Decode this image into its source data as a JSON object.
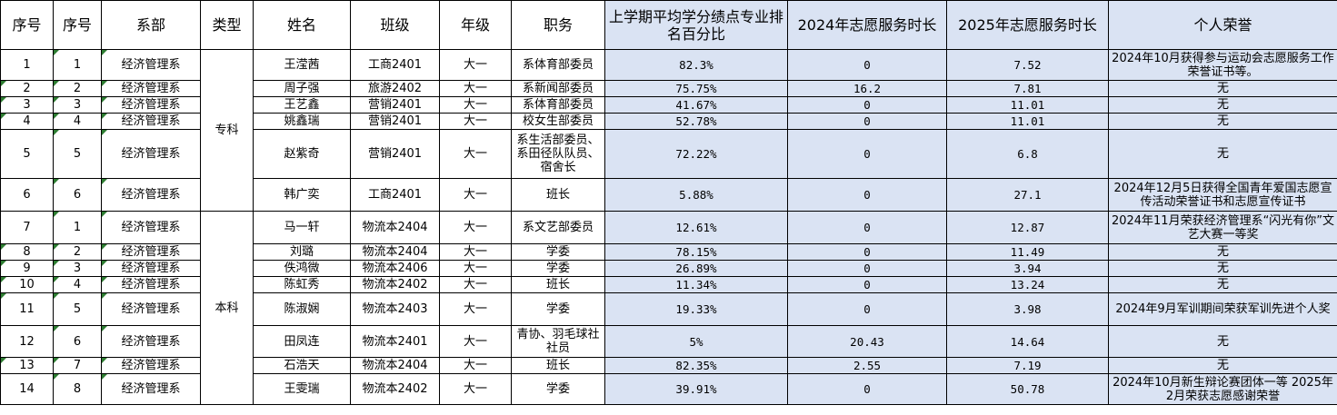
{
  "columns": [
    "序号",
    "序号",
    "系部",
    "类型",
    "姓名",
    "班级",
    "年级",
    "职务",
    "上学期平均学分绩点专业排名百分比",
    "2024年志愿服务时长",
    "2025年志愿服务时长",
    "个人荣誉"
  ],
  "groups": {
    "zhuanke": "专科",
    "benke": "本科"
  },
  "rows": [
    {
      "idx": "1",
      "sub": "1",
      "dept": "经济管理系",
      "name": "王滢茜",
      "cls": "工商2401",
      "grade": "大一",
      "role": "系体育部委员",
      "rank": "82.3%",
      "h2024": "0",
      "h2025": "7.52",
      "honor": "2024年10月获得参与运动会志愿服务工作荣誉证书等。"
    },
    {
      "idx": "2",
      "sub": "2",
      "dept": "经济管理系",
      "name": "周子强",
      "cls": "旅游2402",
      "grade": "大一",
      "role": "系新闻部委员",
      "rank": "75.75%",
      "h2024": "16.2",
      "h2025": "7.81",
      "honor": "无"
    },
    {
      "idx": "3",
      "sub": "3",
      "dept": "经济管理系",
      "name": "王艺鑫",
      "cls": "营销2401",
      "grade": "大一",
      "role": "系体育部委员",
      "rank": "41.67%",
      "h2024": "0",
      "h2025": "11.01",
      "honor": "无"
    },
    {
      "idx": "4",
      "sub": "4",
      "dept": "经济管理系",
      "name": "姚鑫瑞",
      "cls": "营销2401",
      "grade": "大一",
      "role": "校女生部委员",
      "rank": "52.78%",
      "h2024": "0",
      "h2025": "11.01",
      "honor": "无"
    },
    {
      "idx": "5",
      "sub": "5",
      "dept": "经济管理系",
      "name": "赵紫奇",
      "cls": "营销2401",
      "grade": "大一",
      "role": "系生活部委员、系田径队队员、宿舍长",
      "rank": "72.22%",
      "h2024": "0",
      "h2025": "6.8",
      "honor": "无"
    },
    {
      "idx": "6",
      "sub": "6",
      "dept": "经济管理系",
      "name": "韩广奕",
      "cls": "工商2401",
      "grade": "大一",
      "role": "班长",
      "rank": "5.88%",
      "h2024": "0",
      "h2025": "27.1",
      "honor": "2024年12月5日获得全国青年爱国志愿宣传活动荣誉证书和志愿宣传证书"
    },
    {
      "idx": "7",
      "sub": "1",
      "dept": "经济管理系",
      "name": "马一轩",
      "cls": "物流本2404",
      "grade": "大一",
      "role": "系文艺部委员",
      "rank": "12.61%",
      "h2024": "0",
      "h2025": "12.87",
      "honor": "2024年11月荣获经济管理系“闪光有你”文艺大赛一等奖"
    },
    {
      "idx": "8",
      "sub": "2",
      "dept": "经济管理系",
      "name": "刘璐",
      "cls": "物流本2404",
      "grade": "大一",
      "role": "学委",
      "rank": "78.15%",
      "h2024": "0",
      "h2025": "11.49",
      "honor": "无"
    },
    {
      "idx": "9",
      "sub": "3",
      "dept": "经济管理系",
      "name": "佚鸿微",
      "cls": "物流本2406",
      "grade": "大一",
      "role": "学委",
      "rank": "26.89%",
      "h2024": "0",
      "h2025": "3.94",
      "honor": "无"
    },
    {
      "idx": "10",
      "sub": "4",
      "dept": "经济管理系",
      "name": "陈虹秀",
      "cls": "物流本2402",
      "grade": "大一",
      "role": "班长",
      "rank": "11.34%",
      "h2024": "0",
      "h2025": "13.24",
      "honor": "无"
    },
    {
      "idx": "11",
      "sub": "5",
      "dept": "经济管理系",
      "name": "陈淑娴",
      "cls": "物流本2403",
      "grade": "大一",
      "role": "学委",
      "rank": "19.33%",
      "h2024": "0",
      "h2025": "3.98",
      "honor": "2024年9月军训期间荣获军训先进个人奖"
    },
    {
      "idx": "12",
      "sub": "6",
      "dept": "经济管理系",
      "name": "田凤连",
      "cls": "物流本2401",
      "grade": "大一",
      "role": "青协、羽毛球社社员",
      "rank": "5%",
      "h2024": "20.43",
      "h2025": "14.64",
      "honor": "无"
    },
    {
      "idx": "13",
      "sub": "7",
      "dept": "经济管理系",
      "name": "石浩天",
      "cls": "物流本2404",
      "grade": "大一",
      "role": "班长",
      "rank": "82.35%",
      "h2024": "2.55",
      "h2025": "7.19",
      "honor": "无"
    },
    {
      "idx": "14",
      "sub": "8",
      "dept": "经济管理系",
      "name": "王雯瑞",
      "cls": "物流本2402",
      "grade": "大一",
      "role": "学委",
      "rank": "39.91%",
      "h2024": "0",
      "h2025": "50.78",
      "honor": "2024年10月新生辩论赛团体一等 2025年2月荣获志愿感谢荣誉"
    }
  ],
  "colors": {
    "highlight": "#dae3f3",
    "grid": "#000000",
    "flag": "#2e7d32"
  }
}
